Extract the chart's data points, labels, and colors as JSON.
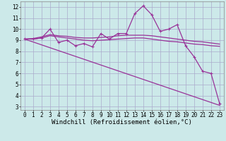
{
  "xlabel": "Windchill (Refroidissement éolien,°C)",
  "background_color": "#cce9e9",
  "line_color": "#993399",
  "grid_color": "#aaaacc",
  "x": [
    0,
    1,
    2,
    3,
    4,
    5,
    6,
    7,
    8,
    9,
    10,
    11,
    12,
    13,
    14,
    15,
    16,
    17,
    18,
    19,
    20,
    21,
    22,
    23
  ],
  "y_main": [
    9.1,
    9.1,
    9.2,
    10.0,
    8.8,
    9.0,
    8.5,
    8.7,
    8.4,
    9.6,
    9.1,
    9.6,
    9.6,
    11.4,
    12.1,
    11.3,
    9.8,
    10.0,
    10.4,
    8.5,
    7.5,
    6.2,
    6.0,
    3.3
  ],
  "y_smooth1": [
    9.1,
    9.15,
    9.3,
    9.5,
    9.4,
    9.35,
    9.25,
    9.2,
    9.2,
    9.25,
    9.3,
    9.4,
    9.45,
    9.45,
    9.45,
    9.4,
    9.3,
    9.2,
    9.1,
    9.0,
    8.9,
    8.85,
    8.75,
    8.65
  ],
  "y_smooth2": [
    9.1,
    9.1,
    9.2,
    9.4,
    9.3,
    9.2,
    9.1,
    9.0,
    8.95,
    9.0,
    9.05,
    9.1,
    9.15,
    9.2,
    9.2,
    9.1,
    9.0,
    8.9,
    8.85,
    8.75,
    8.65,
    8.6,
    8.5,
    8.45
  ],
  "y_linear": [
    9.1,
    8.84,
    8.58,
    8.32,
    8.06,
    7.8,
    7.54,
    7.28,
    7.02,
    6.76,
    6.5,
    6.24,
    5.98,
    5.72,
    5.46,
    5.2,
    4.94,
    4.68,
    4.42,
    4.16,
    3.9,
    3.64,
    3.38,
    3.12
  ],
  "ylim_min": 2.7,
  "ylim_max": 12.5,
  "xlim_min": -0.5,
  "xlim_max": 23.5,
  "yticks": [
    3,
    4,
    5,
    6,
    7,
    8,
    9,
    10,
    11,
    12
  ],
  "xticks": [
    0,
    1,
    2,
    3,
    4,
    5,
    6,
    7,
    8,
    9,
    10,
    11,
    12,
    13,
    14,
    15,
    16,
    17,
    18,
    19,
    20,
    21,
    22,
    23
  ],
  "tick_fontsize": 5.5,
  "xlabel_fontsize": 6.5
}
